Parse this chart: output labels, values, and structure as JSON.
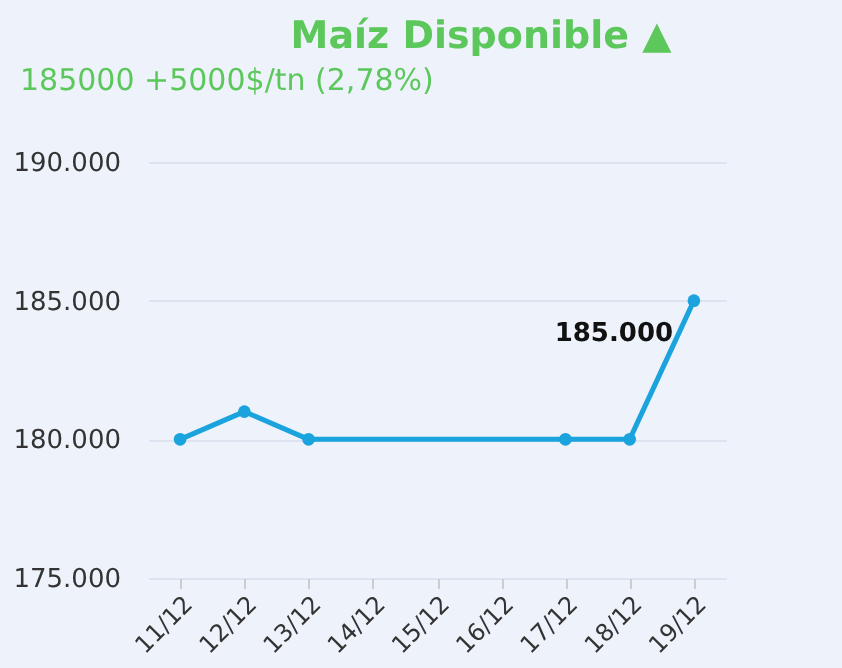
{
  "chart_data": {
    "type": "line",
    "title": "Maíz Disponible ▲",
    "subtitle": "185000 +5000$/tn (2,78%)",
    "categories": [
      "11/12",
      "12/12",
      "13/12",
      "14/12",
      "15/12",
      "16/12",
      "17/12",
      "18/12",
      "19/12"
    ],
    "series": [
      {
        "color": "#1aa3dc",
        "values": [
          180000,
          181000,
          180000,
          null,
          null,
          null,
          180000,
          180000,
          185000
        ],
        "value_labels": [
          null,
          null,
          null,
          null,
          null,
          null,
          null,
          null,
          "185.000"
        ]
      }
    ],
    "ylim": [
      175000,
      190000
    ],
    "yticks": [
      {
        "value": 175000,
        "label": "175.000"
      },
      {
        "value": 180000,
        "label": "180.000"
      },
      {
        "value": 185000,
        "label": "185.000"
      },
      {
        "value": 190000,
        "label": "190.000"
      }
    ],
    "grid": "y",
    "marker": "circle",
    "line_style": "solid"
  }
}
